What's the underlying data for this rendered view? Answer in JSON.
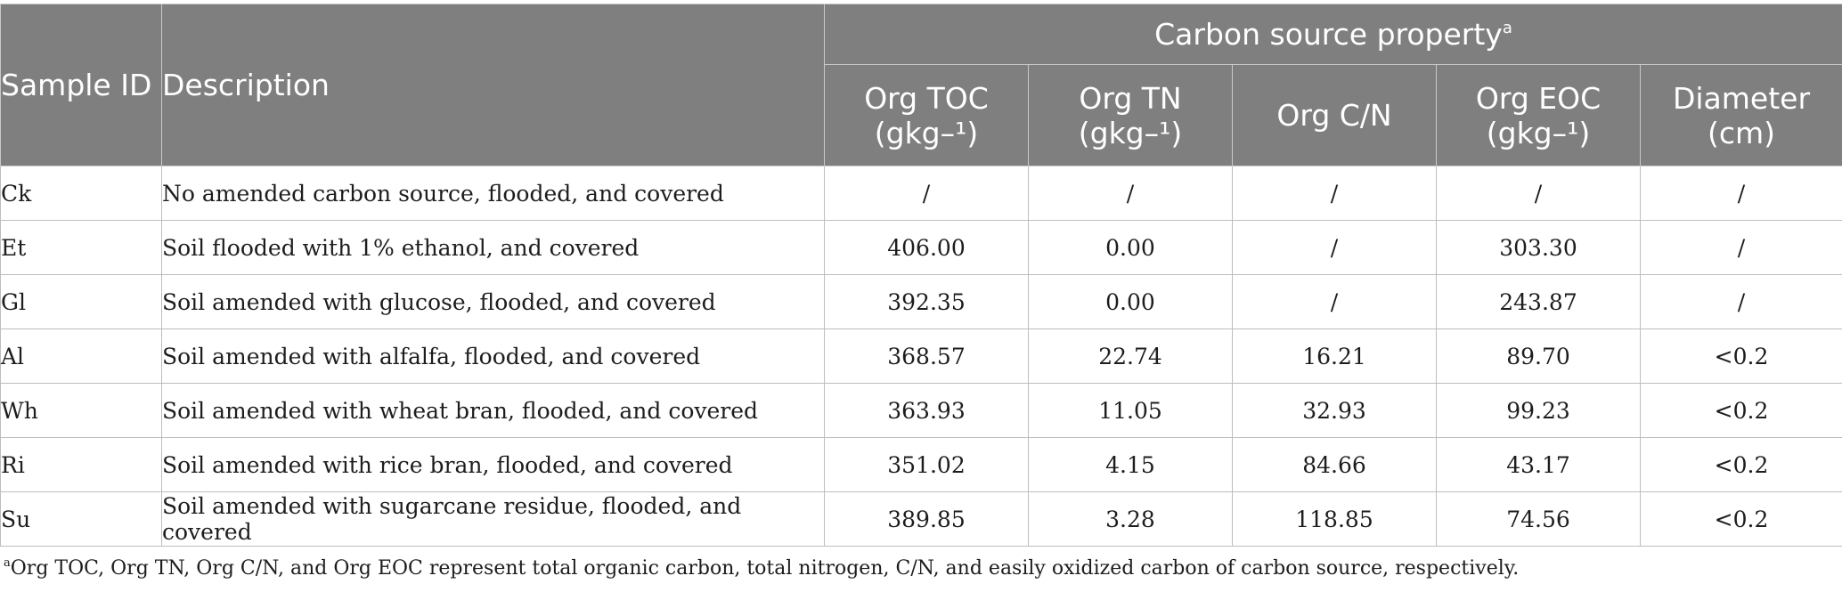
{
  "table": {
    "header": {
      "sample_id": "Sample ID",
      "description": "Description",
      "group": "Carbon source property",
      "group_footnote_mark": "a",
      "columns": [
        {
          "line1": "Org TOC",
          "line2": "(gkg–¹)"
        },
        {
          "line1": "Org TN",
          "line2": "(gkg–¹)"
        },
        {
          "line1": "Org C/N",
          "line2": ""
        },
        {
          "line1": "Org EOC",
          "line2": "(gkg–¹)"
        },
        {
          "line1": "Diameter",
          "line2": "(cm)"
        }
      ]
    },
    "rows": [
      {
        "id": "Ck",
        "description": "No amended carbon source, flooded, and covered",
        "toc": "/",
        "tn": "/",
        "cn": "/",
        "eoc": "/",
        "diameter": "/"
      },
      {
        "id": "Et",
        "description": "Soil flooded with 1% ethanol, and covered",
        "toc": "406.00",
        "tn": "0.00",
        "cn": "/",
        "eoc": "303.30",
        "diameter": "/"
      },
      {
        "id": "Gl",
        "description": "Soil amended with glucose, flooded, and covered",
        "toc": "392.35",
        "tn": "0.00",
        "cn": "/",
        "eoc": "243.87",
        "diameter": "/"
      },
      {
        "id": "Al",
        "description": "Soil amended with alfalfa, flooded, and covered",
        "toc": "368.57",
        "tn": "22.74",
        "cn": "16.21",
        "eoc": "89.70",
        "diameter": "<0.2"
      },
      {
        "id": "Wh",
        "description": "Soil amended with wheat bran, flooded, and covered",
        "toc": "363.93",
        "tn": "11.05",
        "cn": "32.93",
        "eoc": "99.23",
        "diameter": "<0.2"
      },
      {
        "id": "Ri",
        "description": "Soil amended with rice bran, flooded, and covered",
        "toc": "351.02",
        "tn": "4.15",
        "cn": "84.66",
        "eoc": "43.17",
        "diameter": "<0.2"
      },
      {
        "id": "Su",
        "description": "Soil amended with sugarcane residue, flooded, and covered",
        "toc": "389.85",
        "tn": "3.28",
        "cn": "118.85",
        "eoc": "74.56",
        "diameter": "<0.2"
      }
    ]
  },
  "footnote": {
    "mark": "a",
    "text": "Org TOC, Org TN, Org C/N, and Org EOC represent total organic carbon, total nitrogen, C/N, and easily oxidized carbon of carbon source, respectively."
  },
  "colors": {
    "header_bg": "#7e7f7e",
    "header_text": "#ffffff",
    "grid": "#bdbdbd"
  }
}
